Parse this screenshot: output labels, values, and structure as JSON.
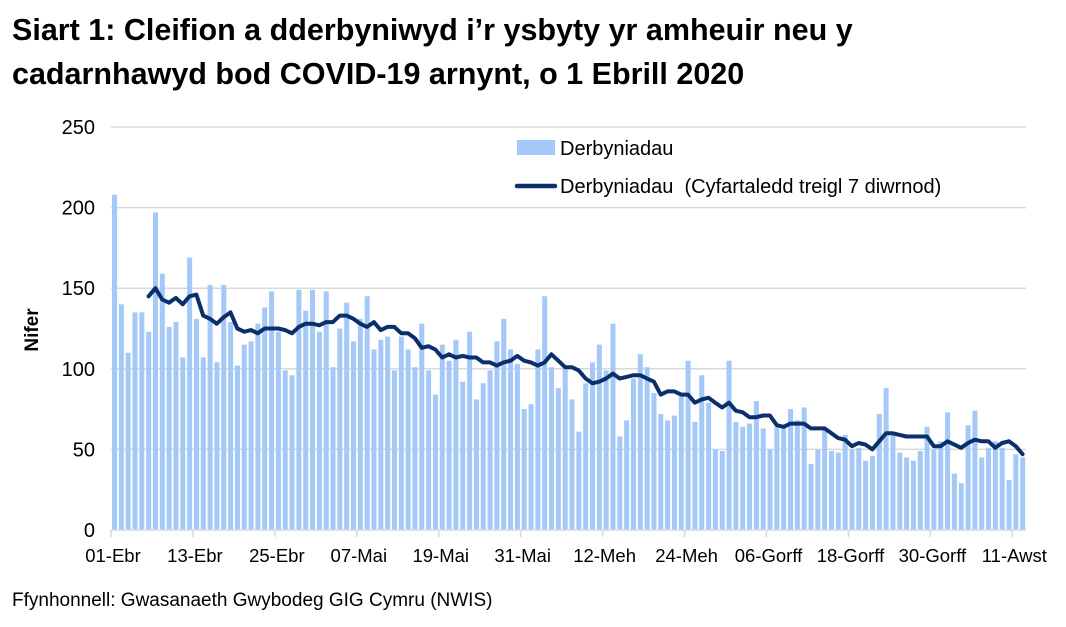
{
  "title": "Siart 1: Cleifion a dderbyniwyd i’r ysbyty yr amheuir neu y cadarnhawyd bod COVID-19 arnynt, o 1 Ebrill 2020",
  "source": "Ffynhonnell: Gwasanaeth Gwybodeg GIG Cymru (NWIS)",
  "colors": {
    "bars": "#a4c8f8",
    "line": "#0b2f6a",
    "grid": "#d9d9d9"
  },
  "chart_data": {
    "type": "bar+line",
    "title": "Siart 1: Cleifion a dderbyniwyd i’r ysbyty yr amheuir neu y cadarnhawyd bod COVID-19 arnynt, o 1 Ebrill 2020",
    "xlabel": "",
    "ylabel": "Nifer",
    "ylim": [
      0,
      250
    ],
    "y_ticks": [
      "0",
      "50",
      "100",
      "150",
      "200",
      "250"
    ],
    "x_tick_labels": [
      "01-Ebr",
      "13-Ebr",
      "25-Ebr",
      "07-Mai",
      "19-Mai",
      "31-Mai",
      "12-Meh",
      "24-Meh",
      "06-Gorff",
      "18-Gorff",
      "30-Gorff",
      "11-Awst"
    ],
    "x_tick_every_days": 12,
    "grid": true,
    "legend_position": "top-right",
    "series": [
      {
        "name": "Derbyniadau",
        "type": "bar",
        "values": [
          208,
          140,
          110,
          135,
          135,
          123,
          197,
          159,
          126,
          129,
          107,
          169,
          131,
          107,
          152,
          104,
          152,
          129,
          102,
          115,
          117,
          128,
          138,
          148,
          123,
          99,
          96,
          149,
          136,
          149,
          123,
          148,
          101,
          125,
          141,
          117,
          131,
          145,
          112,
          118,
          120,
          99,
          120,
          112,
          101,
          128,
          99,
          84,
          115,
          105,
          118,
          92,
          123,
          81,
          91,
          99,
          117,
          131,
          112,
          103,
          75,
          78,
          112,
          145,
          101,
          88,
          101,
          81,
          61,
          91,
          104,
          115,
          99,
          128,
          58,
          68,
          94,
          109,
          101,
          85,
          72,
          68,
          71,
          83,
          105,
          67,
          96,
          79,
          50,
          49,
          105,
          67,
          64,
          66,
          80,
          63,
          50,
          64,
          64,
          75,
          68,
          76,
          41,
          50,
          62,
          49,
          48,
          59,
          50,
          51,
          43,
          46,
          72,
          88,
          61,
          48,
          45,
          43,
          49,
          64,
          50,
          55,
          73,
          35,
          29,
          65,
          74,
          45,
          51,
          55,
          51,
          31,
          47,
          45
        ]
      },
      {
        "name": "Derbyniadau  (Cyfartaledd treigl 7 diwrnod)",
        "type": "line",
        "start_index": 5,
        "values": [
          145,
          150,
          143,
          141,
          144,
          140,
          145,
          146,
          133,
          131,
          128,
          132,
          135,
          125,
          123,
          124,
          122,
          125,
          125,
          125,
          124,
          122,
          126,
          128,
          128,
          127,
          129,
          129,
          133,
          133,
          131,
          128,
          126,
          129,
          124,
          126,
          126,
          122,
          122,
          119,
          113,
          114,
          112,
          107,
          109,
          107,
          108,
          107,
          107,
          104,
          104,
          102,
          104,
          105,
          108,
          105,
          104,
          102,
          104,
          109,
          105,
          101,
          101,
          99,
          94,
          91,
          92,
          94,
          97,
          94,
          95,
          96,
          96,
          94,
          92,
          84,
          86,
          86,
          84,
          84,
          79,
          81,
          82,
          79,
          76,
          79,
          74,
          73,
          70,
          70,
          71,
          71,
          65,
          64,
          66,
          66,
          66,
          63,
          63,
          63,
          60,
          57,
          56,
          52,
          54,
          53,
          50,
          55,
          60,
          60,
          59,
          58,
          58,
          58,
          58,
          52,
          52,
          55,
          53,
          51,
          54,
          56,
          55,
          55,
          51,
          54,
          55,
          52,
          47
        ]
      }
    ]
  }
}
